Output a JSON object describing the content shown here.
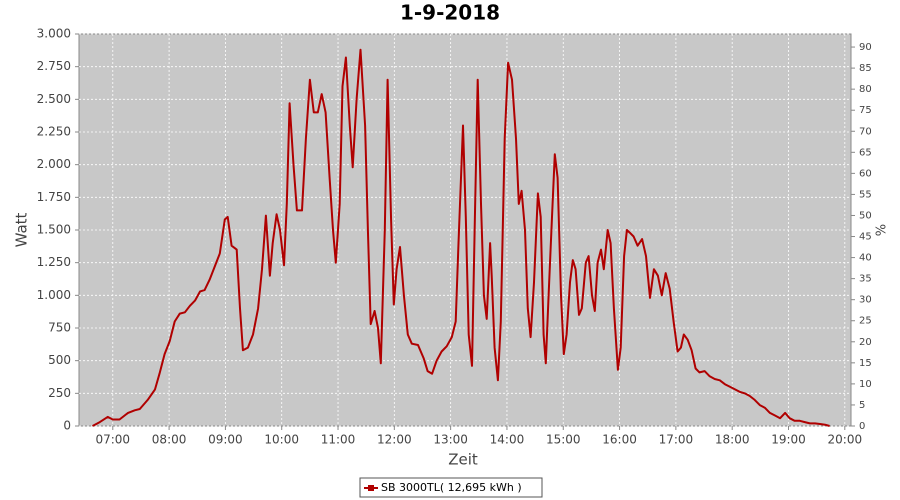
{
  "chart_data": {
    "type": "line",
    "title": "1-9-2018",
    "xlabel": "Zeit",
    "ylabel": "Watt",
    "y2label": "%",
    "x": [
      6.64,
      6.77,
      6.91,
      7.0,
      7.12,
      7.27,
      7.39,
      7.48,
      7.62,
      7.75,
      7.83,
      7.92,
      8.01,
      8.1,
      8.19,
      8.28,
      8.37,
      8.46,
      8.55,
      8.63,
      8.72,
      8.81,
      8.9,
      8.99,
      9.04,
      9.11,
      9.2,
      9.26,
      9.31,
      9.4,
      9.49,
      9.58,
      9.65,
      9.72,
      9.79,
      9.84,
      9.91,
      9.97,
      10.04,
      10.09,
      10.14,
      10.21,
      10.27,
      10.36,
      10.43,
      10.5,
      10.57,
      10.64,
      10.71,
      10.78,
      10.85,
      10.91,
      10.96,
      11.03,
      11.08,
      11.14,
      11.21,
      11.26,
      11.33,
      11.4,
      11.48,
      11.53,
      11.58,
      11.65,
      11.71,
      11.76,
      11.83,
      11.88,
      11.94,
      11.99,
      12.04,
      12.1,
      12.17,
      12.24,
      12.31,
      12.42,
      12.52,
      12.59,
      12.67,
      12.75,
      12.84,
      12.93,
      13.02,
      13.09,
      13.14,
      13.22,
      13.27,
      13.32,
      13.38,
      13.43,
      13.48,
      13.54,
      13.59,
      13.64,
      13.7,
      13.73,
      13.78,
      13.84,
      13.89,
      13.96,
      14.02,
      14.09,
      14.16,
      14.21,
      14.26,
      14.32,
      14.37,
      14.42,
      14.48,
      14.55,
      14.6,
      14.65,
      14.69,
      14.74,
      14.8,
      14.85,
      14.9,
      14.96,
      15.01,
      15.06,
      15.12,
      15.17,
      15.22,
      15.28,
      15.33,
      15.4,
      15.45,
      15.51,
      15.56,
      15.61,
      15.67,
      15.72,
      15.79,
      15.84,
      15.9,
      15.97,
      16.02,
      16.08,
      16.13,
      16.18,
      16.25,
      16.32,
      16.4,
      16.47,
      16.54,
      16.61,
      16.68,
      16.75,
      16.82,
      16.89,
      16.96,
      17.03,
      17.09,
      17.14,
      17.21,
      17.28,
      17.35,
      17.42,
      17.51,
      17.6,
      17.69,
      17.78,
      17.87,
      17.96,
      18.05,
      18.14,
      18.22,
      18.31,
      18.4,
      18.49,
      18.58,
      18.67,
      18.76,
      18.85,
      18.94,
      19.02,
      19.11,
      19.2,
      19.29,
      19.38,
      19.47,
      19.56,
      19.65,
      19.73
    ],
    "series": [
      {
        "name": "SB 3000TL( 12,695 kWh )",
        "color": "#b00000",
        "values": [
          0,
          30,
          70,
          50,
          50,
          100,
          120,
          130,
          200,
          280,
          400,
          550,
          650,
          800,
          860,
          870,
          920,
          960,
          1030,
          1040,
          1120,
          1220,
          1320,
          1580,
          1600,
          1380,
          1350,
          900,
          580,
          600,
          700,
          900,
          1200,
          1610,
          1150,
          1400,
          1620,
          1500,
          1230,
          1700,
          2470,
          2000,
          1650,
          1650,
          2200,
          2650,
          2400,
          2400,
          2540,
          2400,
          1900,
          1500,
          1250,
          1700,
          2600,
          2820,
          2300,
          1980,
          2500,
          2880,
          2300,
          1500,
          780,
          880,
          750,
          480,
          1500,
          2650,
          1600,
          930,
          1200,
          1370,
          1000,
          700,
          630,
          620,
          520,
          420,
          400,
          500,
          570,
          610,
          680,
          800,
          1400,
          2300,
          1600,
          700,
          460,
          1600,
          2650,
          1700,
          1000,
          820,
          1400,
          1150,
          600,
          350,
          800,
          2200,
          2780,
          2650,
          2200,
          1700,
          1800,
          1500,
          900,
          680,
          1100,
          1780,
          1600,
          700,
          480,
          1000,
          1600,
          2080,
          1900,
          1000,
          550,
          700,
          1100,
          1270,
          1200,
          850,
          900,
          1250,
          1300,
          1000,
          880,
          1250,
          1350,
          1200,
          1500,
          1400,
          900,
          430,
          600,
          1300,
          1500,
          1480,
          1450,
          1380,
          1430,
          1300,
          980,
          1200,
          1150,
          1000,
          1170,
          1050,
          800,
          570,
          600,
          700,
          660,
          580,
          440,
          410,
          420,
          380,
          360,
          350,
          320,
          300,
          280,
          260,
          250,
          230,
          200,
          160,
          140,
          100,
          80,
          60,
          100,
          60,
          40,
          40,
          30,
          20,
          20,
          15,
          10,
          0
        ]
      }
    ],
    "xlim": [
      6.4,
      20.11
    ],
    "xticks": [
      {
        "value": 7,
        "label": "07:00"
      },
      {
        "value": 8,
        "label": "08:00"
      },
      {
        "value": 9,
        "label": "09:00"
      },
      {
        "value": 10,
        "label": "10:00"
      },
      {
        "value": 11,
        "label": "11:00"
      },
      {
        "value": 12,
        "label": "12:00"
      },
      {
        "value": 13,
        "label": "13:00"
      },
      {
        "value": 14,
        "label": "14:00"
      },
      {
        "value": 15,
        "label": "15:00"
      },
      {
        "value": 16,
        "label": "16:00"
      },
      {
        "value": 17,
        "label": "17:00"
      },
      {
        "value": 18,
        "label": "18:00"
      },
      {
        "value": 19,
        "label": "19:00"
      },
      {
        "value": 20,
        "label": "20:00"
      }
    ],
    "ylim": [
      0,
      3000
    ],
    "yticks": [
      0,
      250,
      500,
      750,
      {
        "value": 1000,
        "label": "1.000"
      },
      {
        "value": 1250,
        "label": "1.250"
      },
      {
        "value": 1500,
        "label": "1.500"
      },
      {
        "value": 1750,
        "label": "1.750"
      },
      {
        "value": 2000,
        "label": "2.000"
      },
      {
        "value": 2250,
        "label": "2.250"
      },
      {
        "value": 2500,
        "label": "2.500"
      },
      {
        "value": 2750,
        "label": "2.750"
      },
      {
        "value": 3000,
        "label": "3.000"
      }
    ],
    "y2lim": [
      0,
      93.1
    ],
    "y2ticks": [
      0,
      5,
      10,
      15,
      20,
      25,
      30,
      35,
      40,
      45,
      50,
      55,
      60,
      65,
      70,
      75,
      80,
      85,
      90
    ],
    "grid": true,
    "legend": "bottom"
  }
}
